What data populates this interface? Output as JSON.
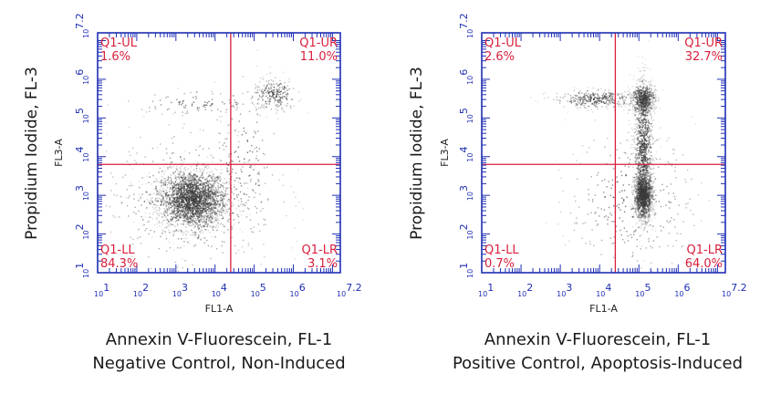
{
  "chart_data": [
    {
      "type": "scatter",
      "plot_subtype": "flow-cytometry density dot plot",
      "xlabel": "FL1-A",
      "ylabel": "FL3-A",
      "outer_ylabel": "Propidium Iodide, FL-3",
      "caption_line1": "Annexin V-Fluorescein, FL-1",
      "caption_line2": "Negative Control, Non-Induced",
      "x_scale": "log10",
      "y_scale": "log10",
      "xlim": [
        10,
        15848932
      ],
      "ylim": [
        10,
        15848932
      ],
      "x_ticks": [
        {
          "base": "10",
          "exp": "1"
        },
        {
          "base": "10",
          "exp": "2"
        },
        {
          "base": "10",
          "exp": "3"
        },
        {
          "base": "10",
          "exp": "4"
        },
        {
          "base": "10",
          "exp": "5"
        },
        {
          "base": "10",
          "exp": "6"
        },
        {
          "base": "10",
          "exp": "7.2"
        }
      ],
      "y_ticks": [
        {
          "base": "10",
          "exp": "1"
        },
        {
          "base": "10",
          "exp": "2"
        },
        {
          "base": "10",
          "exp": "3"
        },
        {
          "base": "10",
          "exp": "4"
        },
        {
          "base": "10",
          "exp": "5"
        },
        {
          "base": "10",
          "exp": "6"
        },
        {
          "base": "10",
          "exp": "7.2"
        }
      ],
      "gate": {
        "x": 25119,
        "y": 6310
      },
      "quadrants": {
        "UL": {
          "label": "Q1-UL",
          "percent": "1.6%"
        },
        "UR": {
          "label": "Q1-UR",
          "percent": "11.0%"
        },
        "LL": {
          "label": "Q1-LL",
          "percent": "84.3%"
        },
        "LR": {
          "label": "Q1-LR",
          "percent": "3.1%"
        }
      },
      "populations": [
        {
          "center": [
            2512,
            794
          ],
          "spread_decades": [
            0.45,
            0.38
          ],
          "share": 0.72
        },
        {
          "center": [
            2512,
            794
          ],
          "spread_decades": [
            1.1,
            0.9
          ],
          "share": 0.14
        },
        {
          "center": [
            316228,
            398107
          ],
          "spread_decades": [
            0.28,
            0.22
          ],
          "share": 0.07
        },
        {
          "center": [
            3162,
            251189
          ],
          "spread_decades": [
            0.9,
            0.15
          ],
          "share": 0.03
        },
        {
          "center": [
            50119,
            10000
          ],
          "spread_decades": [
            0.45,
            1.0
          ],
          "share": 0.04
        }
      ],
      "colors": {
        "axis": "#1f2fb4",
        "gate": "#d81f3c",
        "label": "#d81f3c",
        "dots": "#3a3a3a"
      }
    },
    {
      "type": "scatter",
      "plot_subtype": "flow-cytometry density dot plot",
      "xlabel": "FL1-A",
      "ylabel": "FL3-A",
      "outer_ylabel": "Propidium Iodide, FL-3",
      "caption_line1": "Annexin V-Fluorescein, FL-1",
      "caption_line2": "Positive Control, Apoptosis-Induced",
      "x_scale": "log10",
      "y_scale": "log10",
      "xlim": [
        10,
        15848932
      ],
      "ylim": [
        10,
        15848932
      ],
      "x_ticks": [
        {
          "base": "10",
          "exp": "1"
        },
        {
          "base": "10",
          "exp": "2"
        },
        {
          "base": "10",
          "exp": "3"
        },
        {
          "base": "10",
          "exp": "4"
        },
        {
          "base": "10",
          "exp": "5"
        },
        {
          "base": "10",
          "exp": "6"
        },
        {
          "base": "10",
          "exp": "7.2"
        }
      ],
      "y_ticks": [
        {
          "base": "10",
          "exp": "1"
        },
        {
          "base": "10",
          "exp": "2"
        },
        {
          "base": "10",
          "exp": "3"
        },
        {
          "base": "10",
          "exp": "4"
        },
        {
          "base": "10",
          "exp": "5"
        },
        {
          "base": "10",
          "exp": "6"
        },
        {
          "base": "10",
          "exp": "7.2"
        }
      ],
      "gate": {
        "x": 25119,
        "y": 6310
      },
      "quadrants": {
        "UL": {
          "label": "Q1-UL",
          "percent": "2.6%"
        },
        "UR": {
          "label": "Q1-UR",
          "percent": "32.7%"
        },
        "LL": {
          "label": "Q1-LL",
          "percent": "0.7%"
        },
        "LR": {
          "label": "Q1-LR",
          "percent": "64.0%"
        }
      },
      "populations": [
        {
          "center": [
            125893,
            1000
          ],
          "spread_decades": [
            0.12,
            0.3
          ],
          "share": 0.36
        },
        {
          "center": [
            125893,
            15849
          ],
          "spread_decades": [
            0.12,
            0.85
          ],
          "share": 0.27
        },
        {
          "center": [
            125893,
            316228
          ],
          "spread_decades": [
            0.15,
            0.2
          ],
          "share": 0.17
        },
        {
          "center": [
            7943,
            316228
          ],
          "spread_decades": [
            0.55,
            0.12
          ],
          "share": 0.1
        },
        {
          "center": [
            63096,
            794
          ],
          "spread_decades": [
            0.8,
            0.9
          ],
          "share": 0.1
        }
      ],
      "colors": {
        "axis": "#1f2fb4",
        "gate": "#d81f3c",
        "label": "#d81f3c",
        "dots": "#3a3a3a"
      }
    }
  ]
}
